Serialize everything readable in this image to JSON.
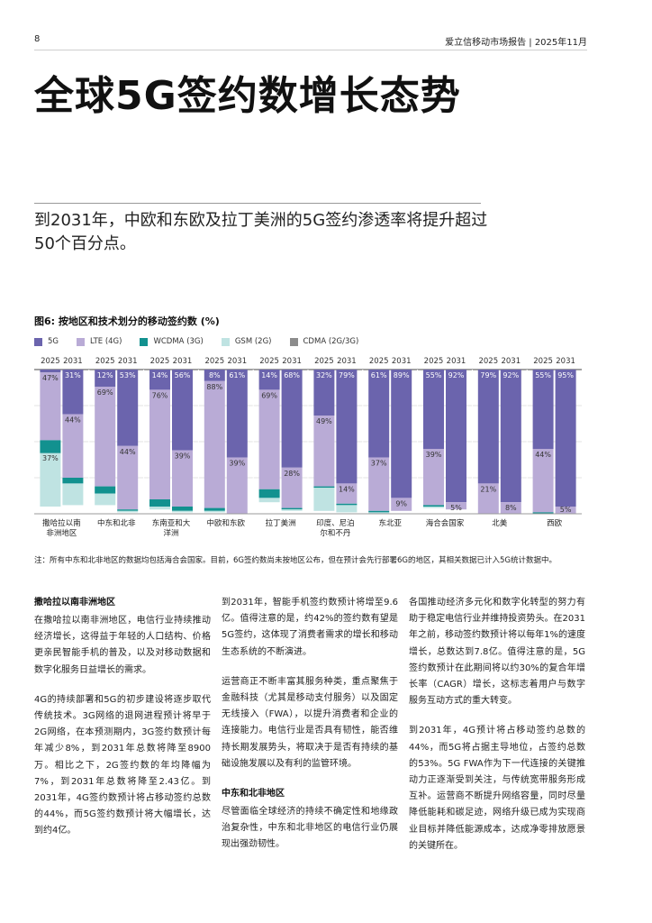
{
  "header": {
    "page_number": "8",
    "running_title": "爱立信移动市场报告 | 2025年11月"
  },
  "title": "全球5G签约数增长态势",
  "subtitle": "到2031年，中欧和东欧及拉丁美洲的5G签约渗透率将提升超过50个百分点。",
  "figure": {
    "title": "图6: 按地区和技术划分的移动签约数 (%)",
    "legend": [
      {
        "label": "5G",
        "color": "#6b64ad"
      },
      {
        "label": "LTE (4G)",
        "color": "#b9abd6"
      },
      {
        "label": "WCDMA (3G)",
        "color": "#12918f"
      },
      {
        "label": "GSM (2G)",
        "color": "#bfe3e2"
      },
      {
        "label": "CDMA (2G/3G)",
        "color": "#8c8c8c"
      }
    ],
    "footnote": "注：所有中东和北非地区的数据均包括海合会国家。目前，6G签约数尚未按地区公布，但在预计会先行部署6G的地区，其相关数据已计入5G统计数据中。"
  },
  "chart_data": {
    "type": "bar",
    "stacked": true,
    "ylim": [
      0,
      100
    ],
    "years": [
      "2025",
      "2031"
    ],
    "series_order": [
      "5G",
      "LTE (4G)",
      "WCDMA (3G)",
      "GSM (2G)",
      "CDMA (2G/3G)"
    ],
    "regions": [
      {
        "name": "撒哈拉以南非洲地区",
        "label_lines": [
          "撒哈拉以南",
          "非洲地区"
        ],
        "bars": [
          {
            "year": "2025",
            "values": [
              2,
              47,
              9,
              37,
              0
            ],
            "labels": [
              "",
              "47%",
              "",
              "37%",
              ""
            ]
          },
          {
            "year": "2031",
            "values": [
              31,
              44,
              4,
              15,
              0
            ],
            "labels": [
              "31%",
              "44%",
              "",
              "",
              ""
            ]
          }
        ]
      },
      {
        "name": "中东和北非",
        "label_lines": [
          "中东和北非"
        ],
        "bars": [
          {
            "year": "2025",
            "values": [
              12,
              69,
              5,
              8,
              0
            ],
            "labels": [
              "12%",
              "69%",
              "",
              "",
              ""
            ]
          },
          {
            "year": "2031",
            "values": [
              53,
              44,
              1,
              1,
              0
            ],
            "labels": [
              "53%",
              "44%",
              "",
              "",
              ""
            ]
          }
        ]
      },
      {
        "name": "东南亚和大洋洲",
        "label_lines": [
          "东南亚和大",
          "洋洲"
        ],
        "bars": [
          {
            "year": "2025",
            "values": [
              14,
              76,
              5,
              2,
              0
            ],
            "labels": [
              "14%",
              "76%",
              "",
              "",
              ""
            ]
          },
          {
            "year": "2031",
            "values": [
              56,
              39,
              3,
              1,
              0
            ],
            "labels": [
              "56%",
              "39%",
              "",
              "",
              ""
            ]
          }
        ]
      },
      {
        "name": "中欧和东欧",
        "label_lines": [
          "中欧和东欧"
        ],
        "bars": [
          {
            "year": "2025",
            "values": [
              8,
              88,
              2,
              1,
              0
            ],
            "labels": [
              "8%",
              "88%",
              "",
              "",
              ""
            ]
          },
          {
            "year": "2031",
            "values": [
              61,
              39,
              0,
              0,
              0
            ],
            "labels": [
              "61%",
              "39%",
              "",
              "",
              ""
            ]
          }
        ]
      },
      {
        "name": "拉丁美洲",
        "label_lines": [
          "拉丁美洲"
        ],
        "bars": [
          {
            "year": "2025",
            "values": [
              14,
              69,
              6,
              3,
              0
            ],
            "labels": [
              "14%",
              "69%",
              "",
              "",
              ""
            ]
          },
          {
            "year": "2031",
            "values": [
              68,
              28,
              1,
              1,
              0
            ],
            "labels": [
              "68%",
              "28%",
              "",
              "",
              ""
            ]
          }
        ]
      },
      {
        "name": "印度、尼泊尔和不丹",
        "label_lines": [
          "印度、尼泊",
          "尔和不丹"
        ],
        "bars": [
          {
            "year": "2025",
            "values": [
              32,
              49,
              1,
              16,
              0
            ],
            "labels": [
              "32%",
              "49%",
              "",
              "",
              ""
            ]
          },
          {
            "year": "2031",
            "values": [
              79,
              14,
              1,
              5,
              0
            ],
            "labels": [
              "79%",
              "14%",
              "",
              "",
              ""
            ]
          }
        ]
      },
      {
        "name": "东北亚",
        "label_lines": [
          "东北亚"
        ],
        "bars": [
          {
            "year": "2025",
            "values": [
              61,
              37,
              1,
              1,
              0
            ],
            "labels": [
              "61%",
              "37%",
              "",
              "",
              ""
            ]
          },
          {
            "year": "2031",
            "values": [
              89,
              9,
              0,
              0,
              0
            ],
            "labels": [
              "89%",
              "9%",
              "",
              "",
              ""
            ]
          }
        ]
      },
      {
        "name": "海合会国家",
        "label_lines": [
          "海合会国家"
        ],
        "bars": [
          {
            "year": "2025",
            "values": [
              55,
              39,
              1,
              1,
              0
            ],
            "labels": [
              "55%",
              "39%",
              "",
              "",
              ""
            ]
          },
          {
            "year": "2031",
            "values": [
              92,
              5,
              0,
              0,
              0
            ],
            "labels": [
              "92%",
              "5%",
              "",
              "",
              ""
            ]
          }
        ]
      },
      {
        "name": "北美",
        "label_lines": [
          "北美"
        ],
        "bars": [
          {
            "year": "2025",
            "values": [
              79,
              21,
              0,
              0,
              0
            ],
            "labels": [
              "79%",
              "21%",
              "",
              "",
              ""
            ]
          },
          {
            "year": "2031",
            "values": [
              92,
              8,
              0,
              0,
              0
            ],
            "labels": [
              "92%",
              "8%",
              "",
              "",
              ""
            ]
          }
        ]
      },
      {
        "name": "西欧",
        "label_lines": [
          "西欧"
        ],
        "bars": [
          {
            "year": "2025",
            "values": [
              55,
              44,
              1,
              0,
              0
            ],
            "labels": [
              "55%",
              "44%",
              "",
              "",
              ""
            ]
          },
          {
            "year": "2031",
            "values": [
              95,
              5,
              0,
              0,
              0
            ],
            "labels": [
              "95%",
              "5%",
              "",
              "",
              ""
            ]
          }
        ]
      }
    ]
  },
  "body": {
    "col1": {
      "heading": "撒哈拉以南非洲地区",
      "p1": "在撒哈拉以南非洲地区，电信行业持续推动经济增长，这得益于年轻的人口结构、价格更亲民智能手机的普及，以及对移动数据和数字化服务日益增长的需求。",
      "p2": "4G的持续部署和5G的初步建设将逐步取代传统技术。3G网络的退网进程预计将早于2G网络，在本预测期内，3G签约数预计每年减少8%，到2031年总数将降至8900万。相比之下，2G签约数的年均降幅为7%，到2031年总数将降至2.43亿。到2031年，4G签约数预计将占移动签约总数的44%，而5G签约数预计将大幅增长，达到约4亿。"
    },
    "col2": {
      "p1": "到2031年，智能手机签约数预计将增至9.6亿。值得注意的是，约42%的签约数有望是5G签约，这体现了消费者需求的增长和移动生态系统的不断演进。",
      "p2": "运营商正不断丰富其服务种类，重点聚焦于金融科技（尤其是移动支付服务）以及固定无线接入（FWA），以提升消费者和企业的连接能力。电信行业是否具有韧性，能否维持长期发展势头，将取决于是否有持续的基础设施发展以及有利的监管环境。",
      "heading": "中东和北非地区",
      "p3": "尽管面临全球经济的持续不确定性和地缘政治复杂性，中东和北非地区的电信行业仍展现出强劲韧性。"
    },
    "col3": {
      "p1": "各国推动经济多元化和数字化转型的努力有助于稳定电信行业并维持投资势头。在2031年之前，移动签约数预计将以每年1%的速度增长，总数达到7.8亿。值得注意的是，5G签约数预计在此期间将以约30%的复合年增长率（CAGR）增长，这标志着用户与数字服务互动方式的重大转变。",
      "p2": "到2031年，4G预计将占移动签约总数的44%，而5G将占据主导地位，占签约总数的53%。5G FWA作为下一代连接的关键推动力正逐渐受到关注，与传统宽带服务形成互补。运营商不断提升网络容量，同时尽量降低能耗和碳足迹，网络升级已成为实现商业目标并降低能源成本，达成净零排放愿景的关键所在。"
    }
  }
}
